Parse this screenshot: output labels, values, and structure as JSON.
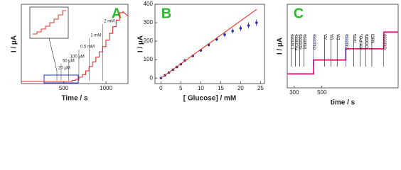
{
  "chart_data": [
    {
      "type": "line",
      "label": "A",
      "x_label": "Time / s",
      "y_label": "I / µA",
      "xlim": [
        0,
        1260
      ],
      "ylim": [
        0,
        300
      ],
      "xticks": [
        500,
        1000
      ],
      "series": [
        {
          "color": "#e8312a",
          "x": [
            0,
            600,
            600,
            640,
            640,
            680,
            680,
            720,
            720,
            760,
            760,
            800,
            800,
            840,
            840,
            880,
            880,
            920,
            920,
            960,
            960,
            1000,
            1000,
            1040,
            1040,
            1080,
            1080,
            1120,
            1120,
            1160,
            1160,
            1200,
            1200,
            1260
          ],
          "values": [
            8,
            8,
            12,
            12,
            16,
            16,
            24,
            24,
            34,
            34,
            48,
            48,
            64,
            64,
            82,
            82,
            100,
            100,
            120,
            120,
            140,
            140,
            165,
            165,
            190,
            190,
            215,
            215,
            240,
            240,
            268,
            268,
            272,
            255
          ]
        }
      ],
      "annotations": [
        {
          "text": "20 µM",
          "x": 420
        },
        {
          "text": "50 µM",
          "x": 470
        },
        {
          "text": "100 µM",
          "x": 560
        },
        {
          "text": "0.5 mM",
          "x": 680
        },
        {
          "text": "1 mM",
          "x": 800
        },
        {
          "text": "2 mM",
          "x": 960
        }
      ]
    },
    {
      "type": "scatter",
      "label": "B",
      "x_label": "[ Glucose] / mM",
      "y_label": "I / µA",
      "xlim": [
        -1.5,
        26
      ],
      "ylim": [
        -30,
        400
      ],
      "xticks": [
        0,
        5,
        10,
        15,
        20,
        25
      ],
      "yticks": [
        0,
        100,
        200,
        300,
        400
      ],
      "series": [
        {
          "color": "#2233aa",
          "marker": "circle",
          "x": [
            0,
            1,
            2,
            3,
            4,
            5,
            6,
            8,
            10,
            12,
            14,
            16,
            18,
            20,
            22,
            24
          ],
          "values": [
            0,
            15,
            30,
            45,
            60,
            75,
            95,
            120,
            150,
            180,
            210,
            235,
            255,
            270,
            285,
            300
          ],
          "errors": [
            3,
            4,
            4,
            5,
            5,
            6,
            6,
            7,
            8,
            9,
            10,
            12,
            14,
            15,
            17,
            18
          ]
        },
        {
          "color": "#e8312a",
          "x": [
            0,
            24
          ],
          "values": [
            0,
            372
          ]
        }
      ]
    },
    {
      "type": "line",
      "label": "C",
      "x_label": "time / s",
      "y_label": "I / µA",
      "xlim": [
        250,
        1050
      ],
      "ylim": [
        0,
        60
      ],
      "xticks": [
        300,
        500
      ],
      "series": [
        {
          "color": "#e0197a",
          "x": [
            250,
            440,
            440,
            672,
            672,
            946,
            946,
            1050
          ],
          "values": [
            10,
            10,
            20,
            20,
            28,
            28,
            40,
            40
          ]
        }
      ],
      "annotations": [
        {
          "text": "Lactose",
          "x": 280,
          "color": "#000000"
        },
        {
          "text": "Fructose",
          "x": 310,
          "color": "#000000"
        },
        {
          "text": "Sucrose",
          "x": 340,
          "color": "#000000"
        },
        {
          "text": "Maltose",
          "x": 370,
          "color": "#000000"
        },
        {
          "text": "Glucose",
          "x": 440,
          "color": "#1a2bb0"
        },
        {
          "text": "AA",
          "x": 520,
          "color": "#000000"
        },
        {
          "text": "UA",
          "x": 565,
          "color": "#000000"
        },
        {
          "text": "DA",
          "x": 610,
          "color": "#000000"
        },
        {
          "text": "Glucose",
          "x": 672,
          "color": "#1a2bb0"
        },
        {
          "text": "urea",
          "x": 730,
          "color": "#000000"
        },
        {
          "text": "KH₂PO₄",
          "x": 775,
          "color": "#000000"
        },
        {
          "text": "Oxalate",
          "x": 815,
          "color": "#000000"
        },
        {
          "text": "NaCl",
          "x": 860,
          "color": "#000000"
        },
        {
          "text": "Glucose",
          "x": 946,
          "color": "#1a2bb0"
        }
      ]
    }
  ]
}
